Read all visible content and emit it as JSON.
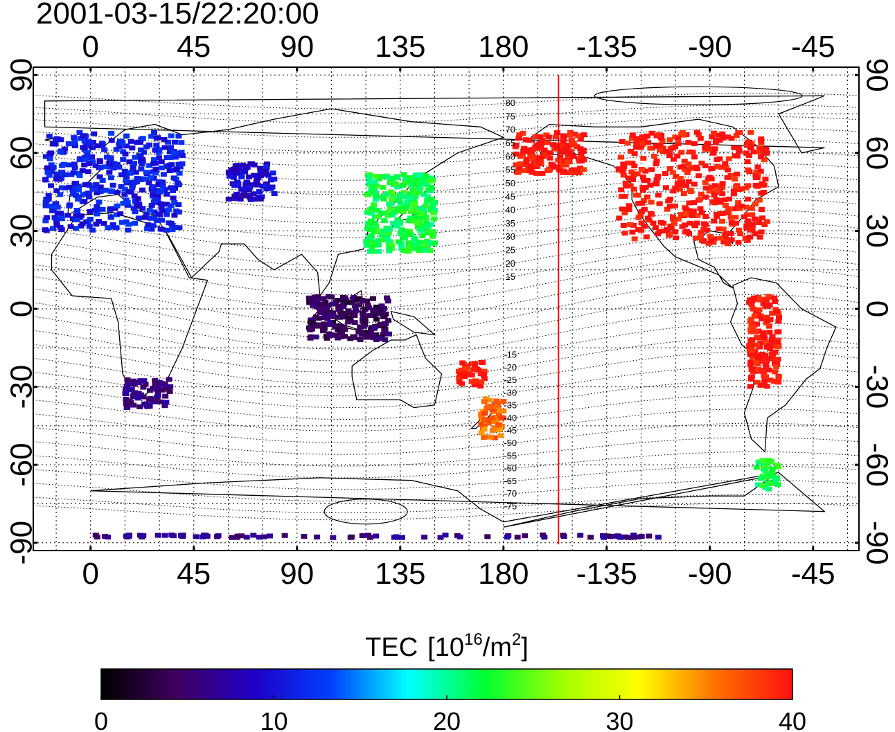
{
  "timestamp": "2001-03-15/22:20:00",
  "chart_data": {
    "type": "heatmap",
    "projection": "equirectangular",
    "x_ticks_top": [
      "0",
      "45",
      "90",
      "135",
      "180",
      "-135",
      "-90",
      "-45"
    ],
    "x_ticks_bottom": [
      "0",
      "45",
      "90",
      "135",
      "180",
      "-135",
      "-90",
      "-45"
    ],
    "y_ticks_left": [
      "90",
      "60",
      "30",
      "0",
      "-30",
      "-60",
      "-90"
    ],
    "y_ticks_right": [
      "90",
      "60",
      "30",
      "0",
      "-30",
      "-60",
      "-90"
    ],
    "xlim": [
      -25,
      335
    ],
    "ylim": [
      -93,
      93
    ],
    "grid": true,
    "meridian_marker_lon": 204,
    "magnetic_latitude_labels": [
      "80",
      "75",
      "70",
      "65",
      "60",
      "55",
      "50",
      "45",
      "40",
      "35",
      "30",
      "25",
      "20",
      "15",
      "-15",
      "-20",
      "-25",
      "-30",
      "-35",
      "-40",
      "-45",
      "-50",
      "-55",
      "-60",
      "-65",
      "-70",
      "-75"
    ],
    "colorbar": {
      "title_main": "TEC",
      "title_unit_open": "[10",
      "title_exp": "16",
      "title_unit_mid": "/m",
      "title_exp2": "2",
      "title_unit_close": "]",
      "ticks": [
        "0",
        "10",
        "20",
        "30",
        "40"
      ],
      "range": [
        0,
        40
      ],
      "colors": [
        "#000000",
        "#400060",
        "#1f00c8",
        "#0040ff",
        "#00ffff",
        "#00ff30",
        "#a0ff00",
        "#ffff00",
        "#ff7000",
        "#ff1010"
      ]
    },
    "regions": [
      {
        "lon": [
          -20,
          40
        ],
        "lat": [
          30,
          68
        ],
        "tec": 11
      },
      {
        "lon": [
          60,
          80
        ],
        "lat": [
          42,
          56
        ],
        "tec": 9
      },
      {
        "lon": [
          120,
          150
        ],
        "lat": [
          22,
          52
        ],
        "tec": 22
      },
      {
        "lon": [
          230,
          295
        ],
        "lat": [
          25,
          68
        ],
        "tec": 40
      },
      {
        "lon": [
          185,
          215
        ],
        "lat": [
          52,
          68
        ],
        "tec": 40
      },
      {
        "lon": [
          15,
          35
        ],
        "lat": [
          -38,
          -27
        ],
        "tec": 6
      },
      {
        "lon": [
          95,
          130
        ],
        "lat": [
          -12,
          5
        ],
        "tec": 4
      },
      {
        "lon": [
          170,
          180
        ],
        "lat": [
          -50,
          -34
        ],
        "tec": 36
      },
      {
        "lon": [
          160,
          172
        ],
        "lat": [
          -30,
          -20
        ],
        "tec": 40
      },
      {
        "lon": [
          287,
          300
        ],
        "lat": [
          -30,
          5
        ],
        "tec": 40
      },
      {
        "lon": [
          290,
          300
        ],
        "lat": [
          -70,
          -58
        ],
        "tec": 22
      },
      {
        "lon": [
          0,
          250
        ],
        "lat": [
          -88,
          -87
        ],
        "tec": 6
      }
    ]
  }
}
